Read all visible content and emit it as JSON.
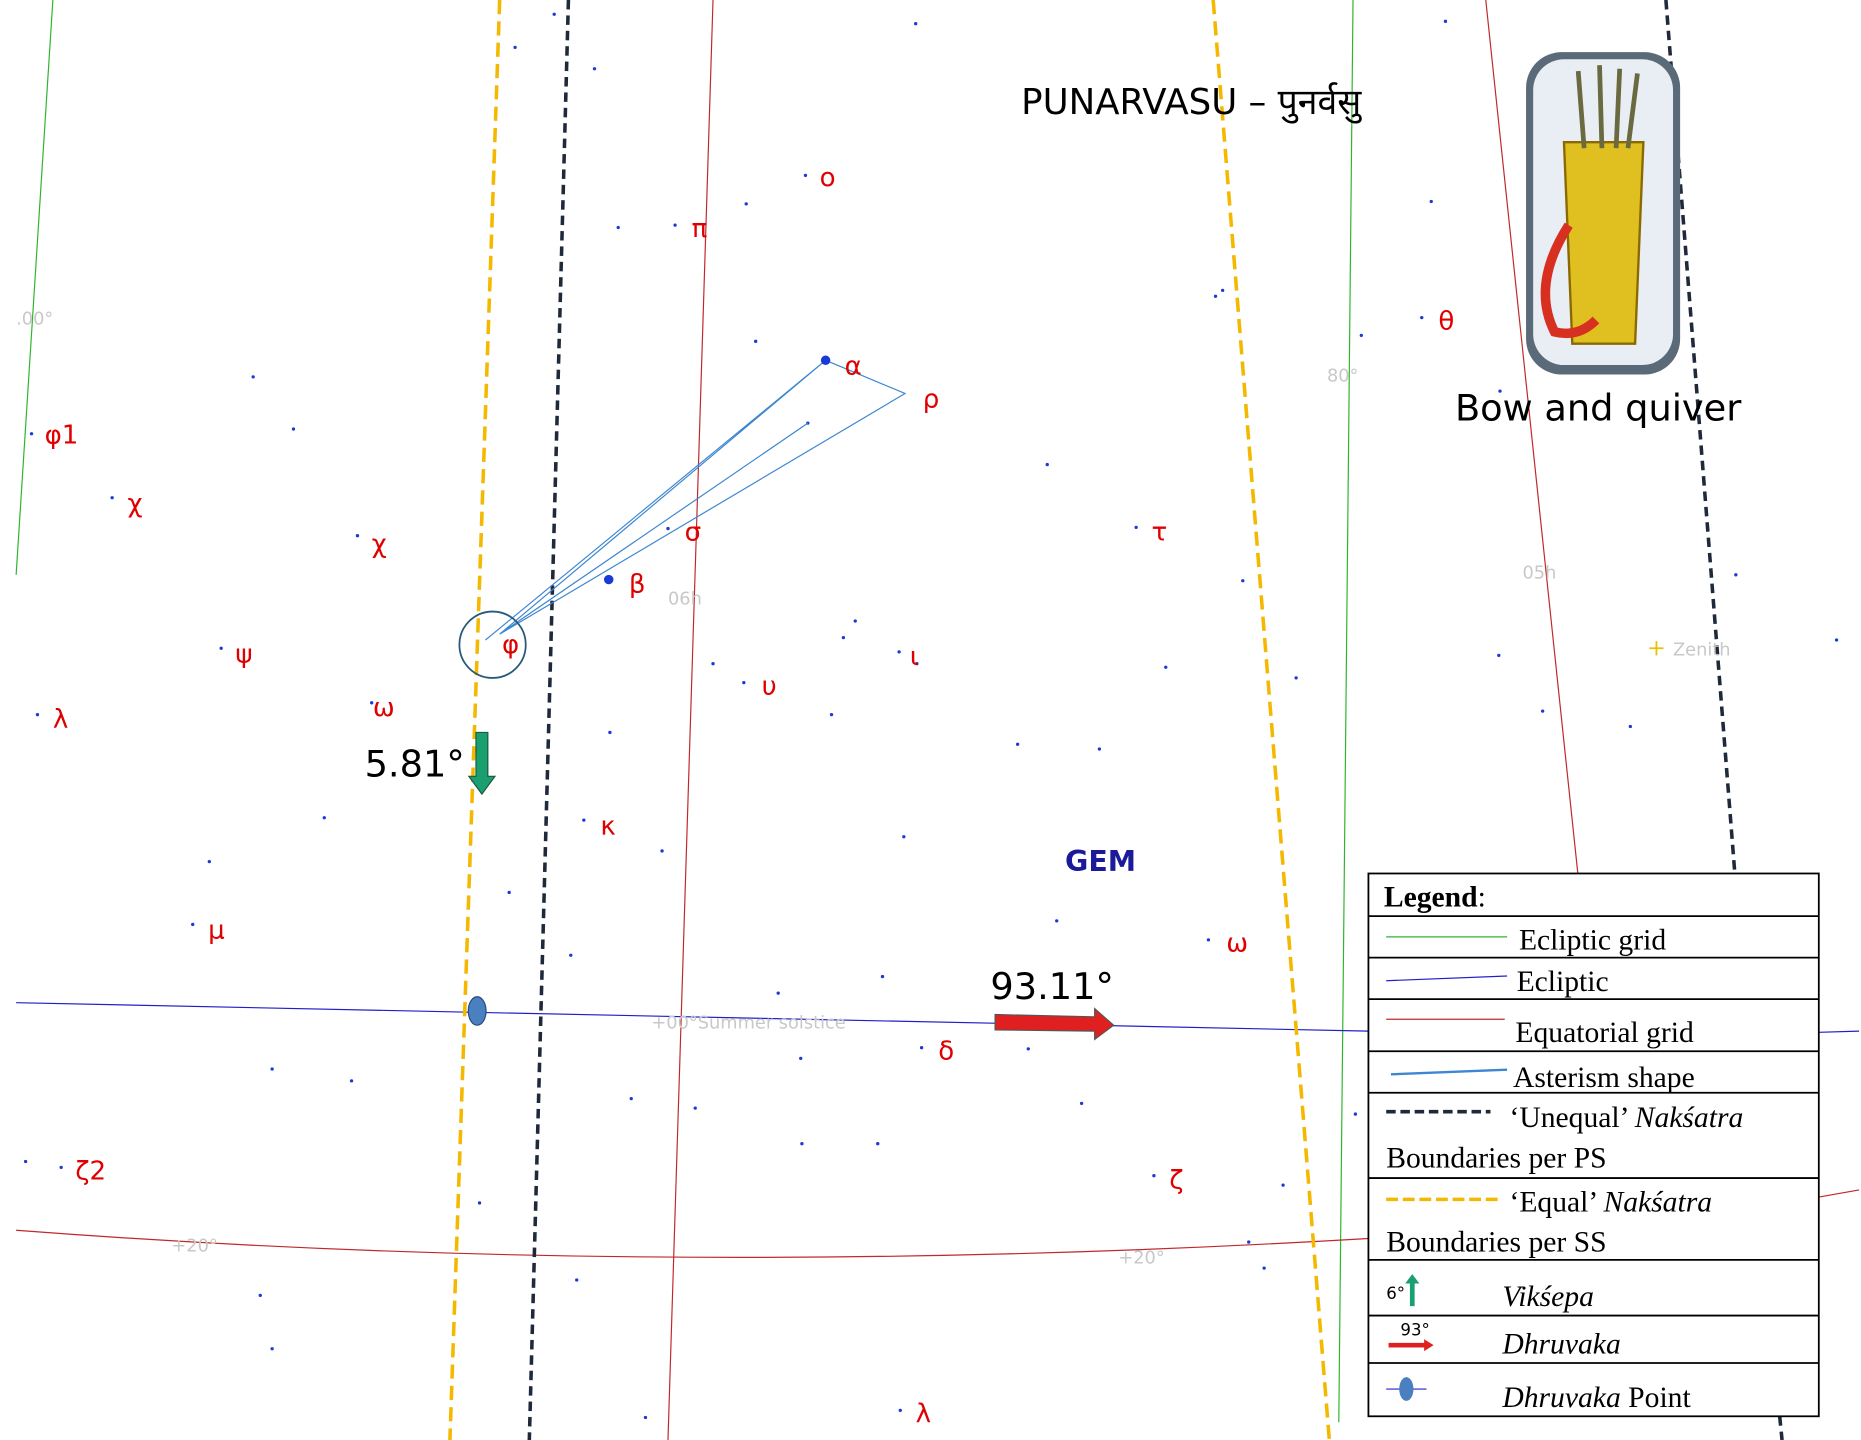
{
  "title": "PUNARVASU – पुनर्वसु",
  "image_caption": "Bow and quiver",
  "constellation": "GEM",
  "annotations": {
    "viksepa": "5.81°",
    "dhruvaka": "93.11°"
  },
  "star_labels": [
    "ο",
    "π",
    "α",
    "ρ",
    "φ1",
    "χ",
    "χ",
    "σ",
    "β",
    "τ",
    "θ",
    "φ",
    "ψ",
    "ι",
    "υ",
    "λ",
    "ω",
    "κ",
    "μ",
    "ω",
    "δ",
    "ζ2",
    "ζ",
    "λ"
  ],
  "grid_labels": [
    ".00°",
    "80°",
    "06h",
    "05h",
    "Zenith",
    "+00°Summer solstice",
    "+20°",
    "+20°"
  ],
  "legend": {
    "heading": "Legend",
    "heading_suffix": ":",
    "items": [
      {
        "lines": [
          [
            {
              "text": "Ecliptic grid",
              "italic": false
            }
          ]
        ]
      },
      {
        "lines": [
          [
            {
              "text": "Ecliptic",
              "italic": false
            }
          ]
        ]
      },
      {
        "lines": [
          [
            {
              "text": "Equatorial grid",
              "italic": false
            }
          ]
        ]
      },
      {
        "lines": [
          [
            {
              "text": "Asterism shape",
              "italic": false
            }
          ]
        ]
      },
      {
        "lines": [
          [
            {
              "text": "‘Unequal’ ",
              "italic": false
            },
            {
              "text": "Nakśatra",
              "italic": true
            }
          ],
          [
            {
              "text": "Boundaries per PS",
              "italic": false
            }
          ]
        ]
      },
      {
        "lines": [
          [
            {
              "text": "‘Equal’ ",
              "italic": false
            },
            {
              "text": "Nakśatra",
              "italic": true
            }
          ],
          [
            {
              "text": "Boundaries per SS",
              "italic": false
            }
          ]
        ]
      },
      {
        "icon_label": "6°",
        "lines": [
          [
            {
              "text": "Vikśepa",
              "italic": true
            }
          ]
        ]
      },
      {
        "icon_label": "93°",
        "lines": [
          [
            {
              "text": "Dhruvaka",
              "italic": true
            }
          ]
        ]
      },
      {
        "lines": [
          [
            {
              "text": "Dhruvaka",
              "italic": true
            },
            {
              "text": " Point",
              "italic": false
            }
          ]
        ]
      }
    ]
  }
}
